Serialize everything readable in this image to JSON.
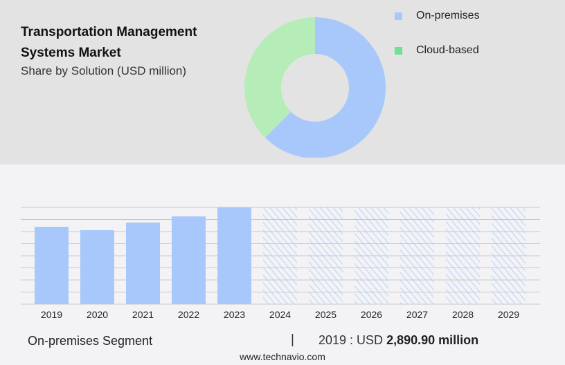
{
  "header": {
    "title": "Transportation Management Systems Market",
    "subtitle": "Share by Solution (USD million)"
  },
  "chart_data": [
    {
      "type": "pie",
      "donut": true,
      "legend_placement": "right",
      "slices": [
        {
          "name": "On-premises",
          "value": 62.5,
          "color": "#a8c8fc"
        },
        {
          "name": "Cloud-based",
          "value": 37.5,
          "color": "#b6ecb8"
        }
      ],
      "legend_colors": [
        "#a8c8fc",
        "#6fe095"
      ]
    },
    {
      "type": "bar",
      "categories": [
        "2019",
        "2020",
        "2021",
        "2022",
        "2023",
        "2024",
        "2025",
        "2026",
        "2027",
        "2028",
        "2029"
      ],
      "series": [
        {
          "name": "On-premises",
          "values": [
            2890.9,
            2762,
            3046,
            3278,
            3614,
            null,
            null,
            null,
            null,
            null,
            null
          ]
        }
      ],
      "forecast_from": "2024",
      "forecast_style": "hatched",
      "ylim": [
        0,
        3614
      ],
      "grid": true,
      "color": "#a8c8fc"
    }
  ],
  "footer": {
    "segment": "On-premises Segment",
    "separator": "|",
    "value_prefix": "2019 : USD",
    "value": "2,890.90 million",
    "url": "www.technavio.com"
  }
}
